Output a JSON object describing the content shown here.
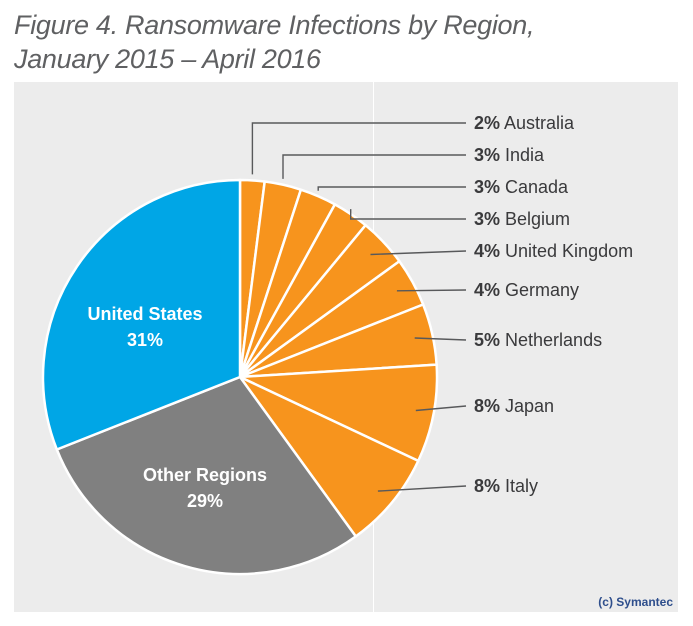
{
  "title_line1": "Figure 4. Ransomware Infections by Region,",
  "title_line2": "January 2015 – April 2016",
  "credit": "(c) Symantec",
  "colors": {
    "united_states": "#00a6e6",
    "other_regions": "#808080",
    "countries": "#f7941d",
    "leader": "#58595b",
    "panel": "#ececec"
  },
  "chart_data": {
    "type": "pie",
    "slices": [
      {
        "label": "Australia",
        "value": 2,
        "value_text": "2%"
      },
      {
        "label": "India",
        "value": 3,
        "value_text": "3%"
      },
      {
        "label": "Canada",
        "value": 3,
        "value_text": "3%"
      },
      {
        "label": "Belgium",
        "value": 3,
        "value_text": "3%"
      },
      {
        "label": "United Kingdom",
        "value": 4,
        "value_text": "4%"
      },
      {
        "label": "Germany",
        "value": 4,
        "value_text": "4%"
      },
      {
        "label": "Netherlands",
        "value": 5,
        "value_text": "5%"
      },
      {
        "label": "Japan",
        "value": 8,
        "value_text": "8%"
      },
      {
        "label": "Italy",
        "value": 8,
        "value_text": "8%"
      },
      {
        "label": "Other Regions",
        "value": 29,
        "value_text": "29%"
      },
      {
        "label": "United States",
        "value": 31,
        "value_text": "31%"
      }
    ]
  }
}
